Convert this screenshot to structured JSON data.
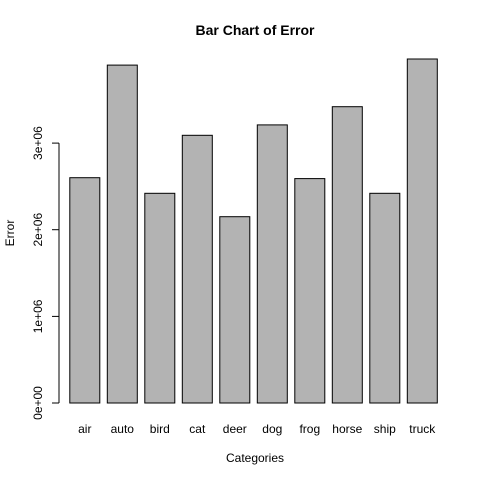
{
  "chart_data": {
    "type": "bar",
    "title": "Bar Chart of Error",
    "xlabel": "Categories",
    "ylabel": "Error",
    "categories": [
      "air",
      "auto",
      "bird",
      "cat",
      "deer",
      "dog",
      "frog",
      "horse",
      "ship",
      "truck"
    ],
    "values": [
      2600000,
      3900000,
      2420000,
      3090000,
      2150000,
      3210000,
      2590000,
      3420000,
      2420000,
      3970000
    ],
    "ylim": [
      0,
      3970000
    ],
    "yticks": [
      0,
      1000000,
      2000000,
      3000000
    ],
    "ytick_labels": [
      "0e+00",
      "1e+06",
      "2e+06",
      "3e+06"
    ],
    "bar_color": "#b3b3b3",
    "grid": false,
    "legend": "none"
  }
}
